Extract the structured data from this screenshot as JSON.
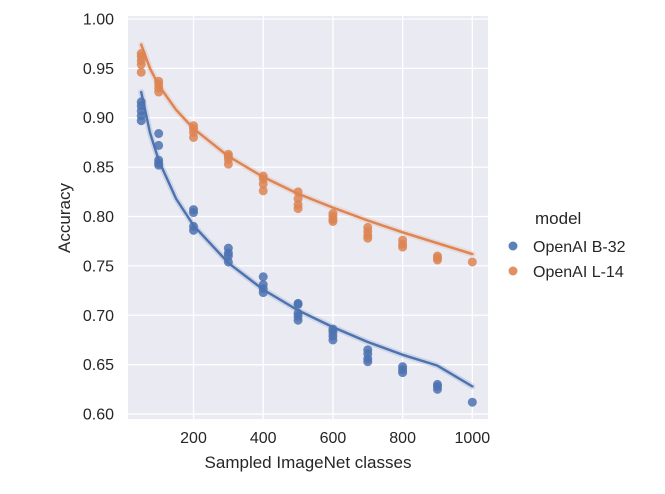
{
  "chart_data": {
    "type": "scatter",
    "title": "",
    "xlabel": "Sampled ImageNet classes",
    "ylabel": "Accuracy",
    "xlim": [
      12,
      1045
    ],
    "ylim": [
      0.595,
      1.003
    ],
    "xticks": [
      200,
      400,
      600,
      800,
      1000
    ],
    "yticks": [
      0.6,
      0.65,
      0.7,
      0.75,
      0.8,
      0.85,
      0.9,
      0.95,
      1.0
    ],
    "xtick_labels": [
      "200",
      "400",
      "600",
      "800",
      "1000"
    ],
    "ytick_labels": [
      "0.60",
      "0.65",
      "0.70",
      "0.75",
      "0.80",
      "0.85",
      "0.90",
      "0.95",
      "1.00"
    ],
    "grid": true,
    "background": "#EAEAF2",
    "legend": {
      "title": "model",
      "position": "right"
    },
    "series": [
      {
        "name": "OpenAI B-32",
        "color": "#4C72B0",
        "points": [
          {
            "x": 50,
            "y": 0.916
          },
          {
            "x": 50,
            "y": 0.912
          },
          {
            "x": 50,
            "y": 0.907
          },
          {
            "x": 50,
            "y": 0.902
          },
          {
            "x": 50,
            "y": 0.897
          },
          {
            "x": 100,
            "y": 0.884
          },
          {
            "x": 100,
            "y": 0.872
          },
          {
            "x": 100,
            "y": 0.857
          },
          {
            "x": 100,
            "y": 0.854
          },
          {
            "x": 100,
            "y": 0.852
          },
          {
            "x": 200,
            "y": 0.807
          },
          {
            "x": 200,
            "y": 0.804
          },
          {
            "x": 200,
            "y": 0.79
          },
          {
            "x": 200,
            "y": 0.786
          },
          {
            "x": 300,
            "y": 0.768
          },
          {
            "x": 300,
            "y": 0.763
          },
          {
            "x": 300,
            "y": 0.76
          },
          {
            "x": 300,
            "y": 0.754
          },
          {
            "x": 400,
            "y": 0.739
          },
          {
            "x": 400,
            "y": 0.731
          },
          {
            "x": 400,
            "y": 0.727
          },
          {
            "x": 400,
            "y": 0.723
          },
          {
            "x": 500,
            "y": 0.712
          },
          {
            "x": 500,
            "y": 0.711
          },
          {
            "x": 500,
            "y": 0.702
          },
          {
            "x": 500,
            "y": 0.699
          },
          {
            "x": 500,
            "y": 0.695
          },
          {
            "x": 600,
            "y": 0.686
          },
          {
            "x": 600,
            "y": 0.683
          },
          {
            "x": 600,
            "y": 0.679
          },
          {
            "x": 600,
            "y": 0.675
          },
          {
            "x": 700,
            "y": 0.665
          },
          {
            "x": 700,
            "y": 0.661
          },
          {
            "x": 700,
            "y": 0.656
          },
          {
            "x": 700,
            "y": 0.653
          },
          {
            "x": 800,
            "y": 0.648
          },
          {
            "x": 800,
            "y": 0.645
          },
          {
            "x": 800,
            "y": 0.642
          },
          {
            "x": 900,
            "y": 0.63
          },
          {
            "x": 900,
            "y": 0.628
          },
          {
            "x": 900,
            "y": 0.625
          },
          {
            "x": 1000,
            "y": 0.612
          }
        ],
        "trend": [
          {
            "x": 50,
            "y": 0.926
          },
          {
            "x": 75,
            "y": 0.885
          },
          {
            "x": 100,
            "y": 0.857
          },
          {
            "x": 150,
            "y": 0.818
          },
          {
            "x": 200,
            "y": 0.791
          },
          {
            "x": 300,
            "y": 0.753
          },
          {
            "x": 400,
            "y": 0.726
          },
          {
            "x": 500,
            "y": 0.705
          },
          {
            "x": 600,
            "y": 0.688
          },
          {
            "x": 700,
            "y": 0.673
          },
          {
            "x": 800,
            "y": 0.66
          },
          {
            "x": 900,
            "y": 0.649
          },
          {
            "x": 1000,
            "y": 0.628
          }
        ]
      },
      {
        "name": "OpenAI L-14",
        "color": "#DD8452",
        "points": [
          {
            "x": 50,
            "y": 0.965
          },
          {
            "x": 50,
            "y": 0.962
          },
          {
            "x": 50,
            "y": 0.958
          },
          {
            "x": 50,
            "y": 0.954
          },
          {
            "x": 50,
            "y": 0.946
          },
          {
            "x": 100,
            "y": 0.937
          },
          {
            "x": 100,
            "y": 0.934
          },
          {
            "x": 100,
            "y": 0.93
          },
          {
            "x": 100,
            "y": 0.926
          },
          {
            "x": 200,
            "y": 0.892
          },
          {
            "x": 200,
            "y": 0.889
          },
          {
            "x": 200,
            "y": 0.885
          },
          {
            "x": 200,
            "y": 0.88
          },
          {
            "x": 300,
            "y": 0.863
          },
          {
            "x": 300,
            "y": 0.861
          },
          {
            "x": 300,
            "y": 0.858
          },
          {
            "x": 300,
            "y": 0.853
          },
          {
            "x": 400,
            "y": 0.841
          },
          {
            "x": 400,
            "y": 0.838
          },
          {
            "x": 400,
            "y": 0.833
          },
          {
            "x": 400,
            "y": 0.826
          },
          {
            "x": 500,
            "y": 0.825
          },
          {
            "x": 500,
            "y": 0.818
          },
          {
            "x": 500,
            "y": 0.812
          },
          {
            "x": 500,
            "y": 0.808
          },
          {
            "x": 600,
            "y": 0.803
          },
          {
            "x": 600,
            "y": 0.8
          },
          {
            "x": 600,
            "y": 0.797
          },
          {
            "x": 600,
            "y": 0.795
          },
          {
            "x": 700,
            "y": 0.789
          },
          {
            "x": 700,
            "y": 0.785
          },
          {
            "x": 700,
            "y": 0.781
          },
          {
            "x": 700,
            "y": 0.778
          },
          {
            "x": 800,
            "y": 0.776
          },
          {
            "x": 800,
            "y": 0.772
          },
          {
            "x": 800,
            "y": 0.769
          },
          {
            "x": 900,
            "y": 0.76
          },
          {
            "x": 900,
            "y": 0.758
          },
          {
            "x": 900,
            "y": 0.756
          },
          {
            "x": 1000,
            "y": 0.754
          }
        ],
        "trend": [
          {
            "x": 50,
            "y": 0.974
          },
          {
            "x": 75,
            "y": 0.95
          },
          {
            "x": 100,
            "y": 0.933
          },
          {
            "x": 150,
            "y": 0.908
          },
          {
            "x": 200,
            "y": 0.889
          },
          {
            "x": 300,
            "y": 0.861
          },
          {
            "x": 400,
            "y": 0.84
          },
          {
            "x": 500,
            "y": 0.823
          },
          {
            "x": 600,
            "y": 0.809
          },
          {
            "x": 700,
            "y": 0.796
          },
          {
            "x": 800,
            "y": 0.784
          },
          {
            "x": 900,
            "y": 0.773
          },
          {
            "x": 1000,
            "y": 0.762
          }
        ]
      }
    ]
  }
}
